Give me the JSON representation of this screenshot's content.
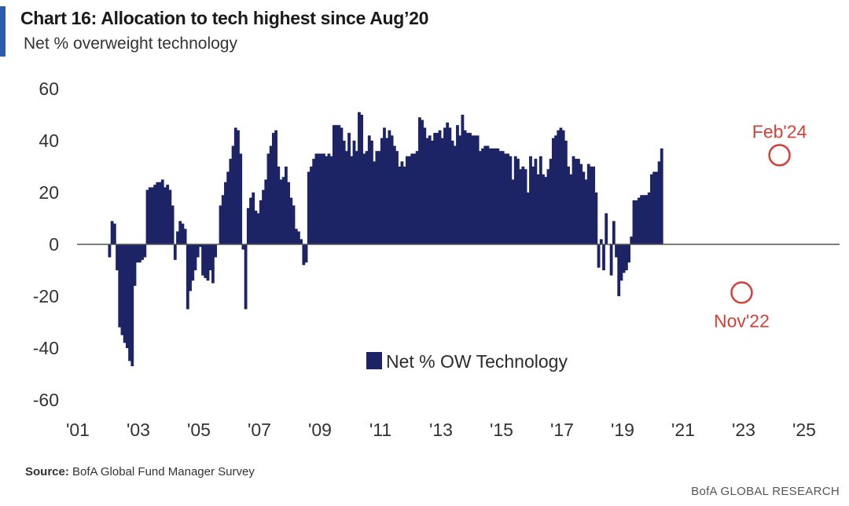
{
  "header": {
    "title": "Chart 16: Allocation to tech highest since Aug’20",
    "subtitle": "Net % overweight technology"
  },
  "footer": {
    "source_label": "Source:",
    "source_text": "BofA Global Fund Manager Survey",
    "credit": "BofA GLOBAL RESEARCH"
  },
  "colors": {
    "bar": "#1c2466",
    "accent": "#2a5db0",
    "annotation": "#d0413a",
    "zero_line": "#555555"
  },
  "chart_data": {
    "type": "bar",
    "title": "Chart 16: Allocation to tech highest since Aug’20",
    "subtitle": "Net % overweight technology",
    "xlabel": "",
    "ylabel": "",
    "ylim": [
      -60,
      60
    ],
    "yticks": [
      60,
      40,
      20,
      0,
      -20,
      -40,
      -60
    ],
    "xlim": [
      2001,
      2025.5
    ],
    "xticks": [
      {
        "value": 2001,
        "label": "'01"
      },
      {
        "value": 2003,
        "label": "'03"
      },
      {
        "value": 2005,
        "label": "'05"
      },
      {
        "value": 2007,
        "label": "'07"
      },
      {
        "value": 2009,
        "label": "'09"
      },
      {
        "value": 2011,
        "label": "'11"
      },
      {
        "value": 2013,
        "label": "'13"
      },
      {
        "value": 2015,
        "label": "'15"
      },
      {
        "value": 2017,
        "label": "'17"
      },
      {
        "value": 2019,
        "label": "'19"
      },
      {
        "value": 2021,
        "label": "'21"
      },
      {
        "value": 2023,
        "label": "'23"
      },
      {
        "value": 2025,
        "label": "'25"
      }
    ],
    "grid": false,
    "legend": {
      "label": "Net % OW Technology",
      "position": "bottom-center"
    },
    "series": [
      {
        "name": "Net % OW Technology",
        "start": 2002.0,
        "step": 0.0833,
        "values": [
          -5,
          9,
          8,
          -10,
          -32,
          -35,
          -38,
          -40,
          -45,
          -47,
          -16,
          -7,
          -7,
          -6,
          -5,
          21,
          22,
          22,
          23,
          24,
          24,
          25,
          22,
          23,
          21,
          15,
          -6,
          5,
          9,
          8,
          6,
          -25,
          -18,
          -14,
          -10,
          -5,
          -1,
          -12,
          -13,
          -14,
          -10,
          -15,
          -5,
          0,
          15,
          19,
          24,
          28,
          33,
          38,
          45,
          44,
          35,
          -2,
          -25,
          14,
          18,
          20,
          13,
          12,
          17,
          21,
          25,
          35,
          38,
          43,
          44,
          30,
          25,
          26,
          30,
          24,
          18,
          15,
          6,
          5,
          2,
          -8,
          -7,
          28,
          30,
          33,
          35,
          35,
          35,
          35,
          34,
          35,
          34,
          46,
          46,
          46,
          45,
          40,
          36,
          43,
          34,
          40,
          36,
          51,
          50,
          35,
          36,
          42,
          40,
          32,
          36,
          36,
          41,
          45,
          41,
          44,
          42,
          38,
          36,
          30,
          32,
          30,
          34,
          34,
          35,
          35,
          36,
          49,
          48,
          45,
          41,
          42,
          40,
          43,
          43,
          44,
          41,
          45,
          47,
          45,
          40,
          38,
          46,
          42,
          50,
          44,
          43,
          43,
          42,
          42,
          42,
          36,
          37,
          38,
          38,
          37,
          37,
          37,
          37,
          36,
          36,
          35,
          35,
          34,
          25,
          34,
          33,
          29,
          30,
          29,
          20,
          34,
          30,
          33,
          27,
          34,
          27,
          26,
          29,
          33,
          41,
          42,
          44,
          45,
          44,
          40,
          30,
          27,
          34,
          33,
          33,
          31,
          28,
          25,
          31,
          30,
          30,
          20,
          -9,
          2,
          -10,
          12,
          0,
          -12,
          9,
          -5,
          -20,
          -14,
          -11,
          -10,
          -7,
          3,
          17,
          17,
          18,
          19,
          19,
          19,
          20,
          27,
          28,
          28,
          32,
          37
        ]
      }
    ],
    "annotations": [
      {
        "label": "Feb'24",
        "x": 2024.08,
        "y": 35
      },
      {
        "label": "Nov'22",
        "x": 2022.83,
        "y": -18
      }
    ]
  }
}
